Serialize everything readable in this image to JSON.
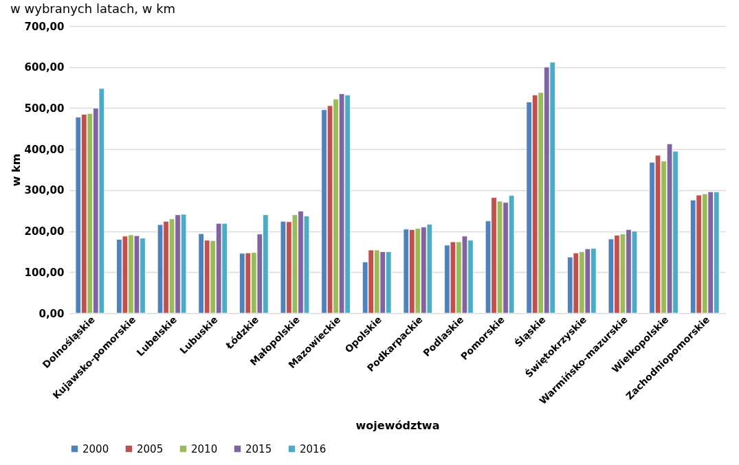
{
  "chart_data": {
    "type": "bar",
    "title": "w wybranych latach, w km",
    "xlabel": "województwa",
    "ylabel": "w km",
    "categories": [
      "Dolnośląskie",
      "Kujawsko-pomorskie",
      "Lubelskie",
      "Lubuskie",
      "Łódzkie",
      "Małopolskie",
      "Mazowieckie",
      "Opolskie",
      "Podkarpackie",
      "Podlaskie",
      "Pomorskie",
      "Śląskie",
      "Świętokrzyskie",
      "Warmińsko-mazurskie",
      "Wielkopolskie",
      "Zachodniopomorskie"
    ],
    "series": [
      {
        "name": "2000",
        "color": "#4f81bd",
        "values": [
          478,
          180,
          216,
          194,
          146,
          224,
          496,
          125,
          205,
          166,
          225,
          515,
          137,
          181,
          368,
          276
        ]
      },
      {
        "name": "2005",
        "color": "#c0504d",
        "values": [
          485,
          188,
          224,
          178,
          147,
          223,
          506,
          154,
          204,
          174,
          282,
          532,
          147,
          190,
          385,
          288
        ]
      },
      {
        "name": "2010",
        "color": "#9bbb59",
        "values": [
          487,
          191,
          230,
          177,
          148,
          240,
          522,
          154,
          207,
          174,
          273,
          538,
          150,
          193,
          371,
          291
        ]
      },
      {
        "name": "2015",
        "color": "#8064a2",
        "values": [
          500,
          189,
          240,
          219,
          193,
          249,
          535,
          150,
          210,
          188,
          270,
          600,
          157,
          204,
          413,
          296
        ]
      },
      {
        "name": "2016",
        "color": "#4bacc6",
        "values": [
          548,
          183,
          241,
          219,
          240,
          237,
          532,
          150,
          217,
          178,
          287,
          612,
          158,
          200,
          395,
          296
        ]
      }
    ],
    "ylim": [
      0,
      700
    ],
    "yticks": [
      {
        "value": 0,
        "label": "0,00"
      },
      {
        "value": 100,
        "label": "100,00"
      },
      {
        "value": 200,
        "label": "200,00"
      },
      {
        "value": 300,
        "label": "300,00"
      },
      {
        "value": 400,
        "label": "400,00"
      },
      {
        "value": 500,
        "label": "500,00"
      },
      {
        "value": 600,
        "label": "600,00"
      },
      {
        "value": 700,
        "label": "700,00"
      }
    ],
    "grid": "y",
    "legend": "bottom"
  }
}
